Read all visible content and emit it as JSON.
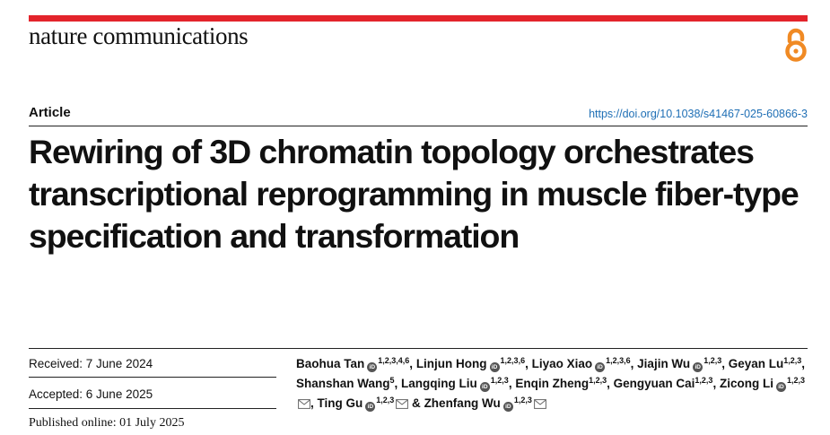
{
  "journal": {
    "name": "nature communications"
  },
  "header": {
    "article_type": "Article",
    "doi": "https://doi.org/10.1038/s41467-025-60866-3"
  },
  "title": "Rewiring of 3D chromatin topology orchestrates transcriptional reprogramming in muscle fiber-type specification and transformation",
  "dates": {
    "received": "Received: 7 June 2024",
    "accepted": "Accepted: 6 June 2025",
    "published": "Published online: 01 July 2025"
  },
  "authors": [
    {
      "name": "Baohua Tan",
      "affil": "1,2,3,4,6",
      "orcid": true,
      "mail": false
    },
    {
      "name": "Linjun Hong",
      "affil": "1,2,3,6",
      "orcid": true,
      "mail": false
    },
    {
      "name": "Liyao Xiao",
      "affil": "1,2,3,6",
      "orcid": true,
      "mail": false
    },
    {
      "name": "Jiajin Wu",
      "affil": "1,2,3",
      "orcid": true,
      "mail": false
    },
    {
      "name": "Geyan Lu",
      "affil": "1,2,3",
      "orcid": false,
      "mail": false
    },
    {
      "name": "Shanshan Wang",
      "affil": "5",
      "orcid": false,
      "mail": false
    },
    {
      "name": "Langqing Liu",
      "affil": "1,2,3",
      "orcid": true,
      "mail": false
    },
    {
      "name": "Enqin Zheng",
      "affil": "1,2,3",
      "orcid": false,
      "mail": false
    },
    {
      "name": "Gengyuan Cai",
      "affil": "1,2,3",
      "orcid": false,
      "mail": false
    },
    {
      "name": "Zicong Li",
      "affil": "1,2,3",
      "orcid": true,
      "mail": true
    },
    {
      "name": "Ting Gu",
      "affil": "1,2,3",
      "orcid": true,
      "mail": true
    },
    {
      "name": "Zhenfang Wu",
      "affil": "1,2,3",
      "orcid": true,
      "mail": true
    }
  ],
  "icons": {
    "open_access": "open-access-icon",
    "orcid": "orcid-icon",
    "mail": "mail-icon"
  },
  "colors": {
    "accent_bar": "#e3242b",
    "open_access": "#f08a24",
    "link": "#1f6fb5"
  }
}
